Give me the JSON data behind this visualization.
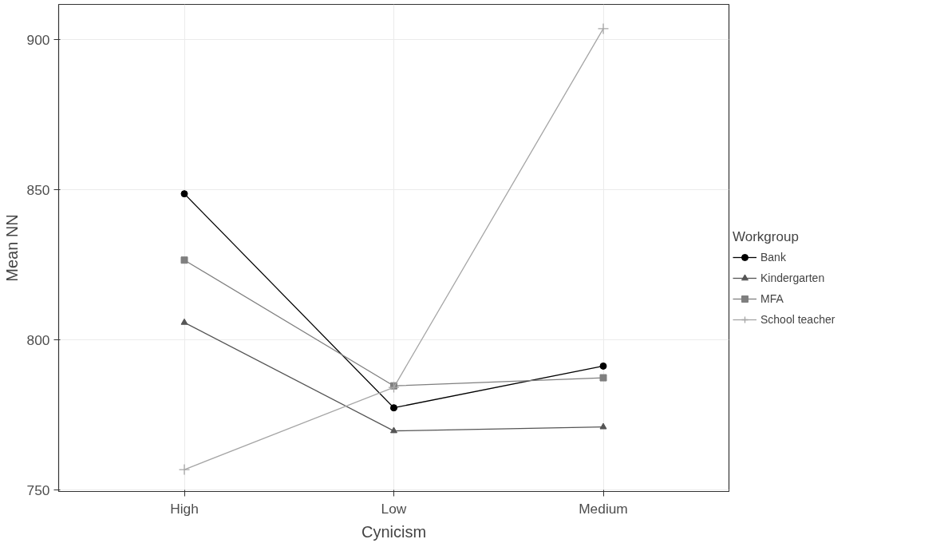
{
  "chart_data": {
    "type": "line",
    "xlabel": "Cynicism",
    "ylabel": "Mean NN",
    "legend_title": "Workgroup",
    "categories": [
      "High",
      "Low",
      "Medium"
    ],
    "series": [
      {
        "name": "Bank",
        "color": "#000000",
        "marker": "circle",
        "values": [
          848.7,
          777.4,
          791.3
        ]
      },
      {
        "name": "Kindergarten",
        "color": "#555555",
        "marker": "triangle",
        "values": [
          805.8,
          769.7,
          771
        ]
      },
      {
        "name": "MFA",
        "color": "#7f7f7f",
        "marker": "square",
        "values": [
          826.6,
          784.7,
          787.4
        ]
      },
      {
        "name": "School teacher",
        "color": "#a6a6a6",
        "marker": "cross",
        "values": [
          756.8,
          784.2,
          903.7
        ]
      }
    ],
    "ylim": [
      749.5,
      911.8
    ],
    "yticks": [
      750,
      800,
      850,
      900
    ],
    "grid": true,
    "legend": "right"
  }
}
